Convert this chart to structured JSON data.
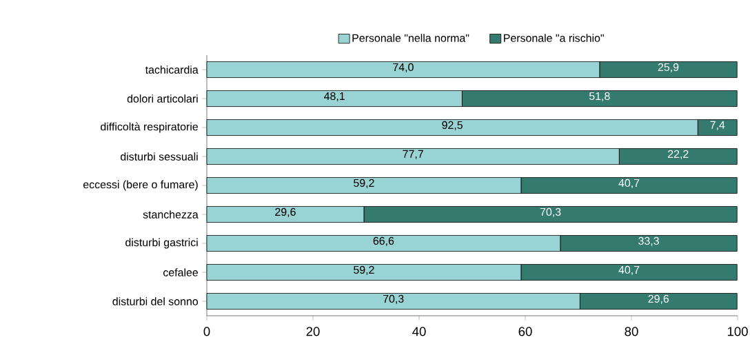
{
  "chart_data": {
    "type": "bar",
    "orientation": "horizontal",
    "stacked": true,
    "legend": "top",
    "categories": [
      "tachicardia",
      "dolori articolari",
      "difficoltà respiratorie",
      "disturbi sessuali",
      "eccessi (bere o fumare)",
      "stanchezza",
      "disturbi gastrici",
      "cefalee",
      "disturbi del sonno"
    ],
    "series": [
      {
        "name": "Personale \"nella norma\"",
        "color": "#99d3d3",
        "values": [
          74.0,
          48.1,
          92.5,
          77.7,
          59.2,
          29.6,
          66.6,
          59.2,
          70.3
        ],
        "value_labels": [
          "74,0",
          "48,1",
          "92,5",
          "77,7",
          "59,2",
          "29,6",
          "66,6",
          "59,2",
          "70,3"
        ]
      },
      {
        "name": "Personale \"a rischio\"",
        "color": "#357a6e",
        "values": [
          25.9,
          51.8,
          7.4,
          22.2,
          40.7,
          70.3,
          33.3,
          40.7,
          29.6
        ],
        "value_labels": [
          "25,9",
          "51,8",
          "7,4",
          "22,2",
          "40,7",
          "70,3",
          "33,3",
          "40,7",
          "29,6"
        ]
      }
    ],
    "xlim": [
      0,
      100
    ],
    "xticks": [
      0,
      20,
      40,
      60,
      80,
      100
    ]
  }
}
